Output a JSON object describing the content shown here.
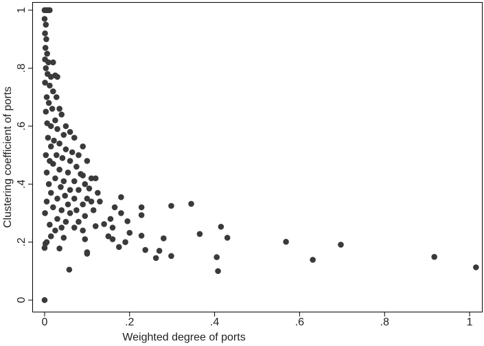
{
  "chart_data": {
    "type": "scatter",
    "xlabel": "Weighted degree of ports",
    "ylabel": "Clustering coefficient of ports",
    "color": "#3a3a3a",
    "xlim": [
      -0.029,
      1.029
    ],
    "ylim": [
      -0.04,
      1.028
    ],
    "xticks": [
      0,
      {
        "value": 0.2,
        "label": ".2"
      },
      {
        "value": 0.4,
        "label": ".4"
      },
      {
        "value": 0.6,
        "label": ".6"
      },
      {
        "value": 0.8,
        "label": ".8"
      },
      1
    ],
    "yticks": [
      0,
      {
        "value": 0.2,
        "label": ".2"
      },
      {
        "value": 0.4,
        "label": ".4"
      },
      {
        "value": 0.6,
        "label": ".6"
      },
      {
        "value": 0.8,
        "label": ".8"
      },
      1
    ],
    "x": [
      0,
      0.004,
      0.008,
      0.012,
      0,
      0.003,
      0.001,
      0.004,
      0.002,
      0.006,
      0.001,
      0.009,
      0.02,
      0.003,
      0.007,
      0.015,
      0.025,
      0.03,
      0.001,
      0.012,
      0.02,
      0.005,
      0.028,
      0.01,
      0.018,
      0.035,
      0.003,
      0.04,
      0.025,
      0.006,
      0.05,
      0.015,
      0.03,
      0.06,
      0.045,
      0.008,
      0.022,
      0.07,
      0.035,
      0.09,
      0.015,
      0.05,
      0.065,
      0.003,
      0.028,
      0.08,
      0.042,
      0.012,
      0.06,
      0.1,
      0.02,
      0.075,
      0.035,
      0.005,
      0.055,
      0.09,
      0.11,
      0.085,
      0.025,
      0.045,
      0.07,
      0.01,
      0.095,
      0.12,
      0.038,
      0.06,
      0.08,
      0.105,
      0.015,
      0.048,
      0.125,
      0.03,
      0.07,
      0.1,
      0.11,
      0.005,
      0.055,
      0.09,
      0.13,
      0.02,
      0.04,
      0.075,
      0.115,
      0.001,
      0.06,
      0.095,
      0.03,
      0.05,
      0.08,
      0.012,
      0.04,
      0.07,
      0.025,
      0.09,
      0.015,
      0.005,
      0,
      0.002,
      0.095,
      0,
      0.43,
      0.415,
      0.405,
      0.408,
      0.365,
      0.345,
      0.298,
      0.298,
      0.28,
      0.27,
      0.262,
      0.237,
      0.228,
      0.228,
      0.228,
      0.2,
      0.195,
      0.19,
      0.18,
      0.18,
      0.175,
      0.165,
      0.16,
      0.16,
      0.155,
      0.15,
      0.14,
      0.12,
      0.1,
      0.1,
      0.058,
      0.035,
      0.045,
      1.015,
      0.917,
      0.697,
      0.631,
      0.568
    ],
    "y": [
      1,
      1,
      1,
      1,
      0.97,
      0.95,
      0.92,
      0.9,
      0.87,
      0.85,
      0.83,
      0.82,
      0.82,
      0.8,
      0.78,
      0.77,
      0.775,
      0.77,
      0.75,
      0.74,
      0.72,
      0.7,
      0.7,
      0.68,
      0.66,
      0.66,
      0.65,
      0.64,
      0.62,
      0.61,
      0.6,
      0.6,
      0.59,
      0.58,
      0.57,
      0.56,
      0.55,
      0.56,
      0.54,
      0.53,
      0.53,
      0.52,
      0.51,
      0.5,
      0.5,
      0.5,
      0.49,
      0.48,
      0.48,
      0.48,
      0.47,
      0.46,
      0.45,
      0.44,
      0.44,
      0.43,
      0.42,
      0.435,
      0.42,
      0.41,
      0.41,
      0.4,
      0.4,
      0.42,
      0.39,
      0.38,
      0.38,
      0.385,
      0.37,
      0.36,
      0.37,
      0.35,
      0.35,
      0.35,
      0.34,
      0.34,
      0.33,
      0.33,
      0.34,
      0.32,
      0.31,
      0.31,
      0.31,
      0.3,
      0.3,
      0.29,
      0.28,
      0.27,
      0.27,
      0.26,
      0.25,
      0.25,
      0.24,
      0.24,
      0.22,
      0.2,
      0.18,
      0.195,
      0.21,
      0,
      0.215,
      0.253,
      0.148,
      0.1,
      0.228,
      0.332,
      0.325,
      0.152,
      0.213,
      0.17,
      0.145,
      0.173,
      0.32,
      0.293,
      0.222,
      0.232,
      0.272,
      0.2,
      0.355,
      0.3,
      0.183,
      0.32,
      0.25,
      0.21,
      0.28,
      0.22,
      0.262,
      0.255,
      0.165,
      0.16,
      0.105,
      0.178,
      0.215,
      0.113,
      0.149,
      0.191,
      0.139,
      0.201
    ]
  }
}
